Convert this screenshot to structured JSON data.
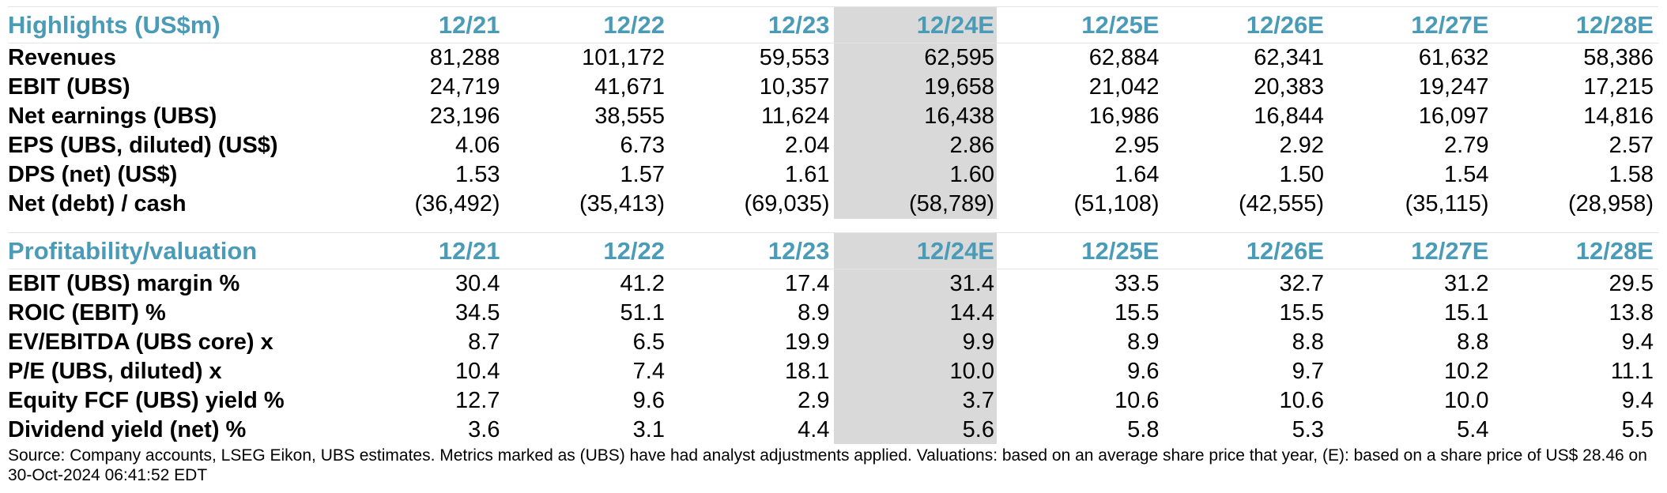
{
  "colors": {
    "header_text": "#4a9bb7",
    "shaded_column": "#d9d9d9",
    "body_text": "#000000"
  },
  "highlights": {
    "title": "Highlights (US$m)",
    "columns": [
      "12/21",
      "12/22",
      "12/23",
      "12/24E",
      "12/25E",
      "12/26E",
      "12/27E",
      "12/28E"
    ],
    "rows": [
      {
        "label": "Revenues",
        "values": [
          "81,288",
          "101,172",
          "59,553",
          "62,595",
          "62,884",
          "62,341",
          "61,632",
          "58,386"
        ]
      },
      {
        "label": "EBIT (UBS)",
        "values": [
          "24,719",
          "41,671",
          "10,357",
          "19,658",
          "21,042",
          "20,383",
          "19,247",
          "17,215"
        ]
      },
      {
        "label": "Net earnings (UBS)",
        "values": [
          "23,196",
          "38,555",
          "11,624",
          "16,438",
          "16,986",
          "16,844",
          "16,097",
          "14,816"
        ]
      },
      {
        "label": "EPS (UBS, diluted) (US$)",
        "values": [
          "4.06",
          "6.73",
          "2.04",
          "2.86",
          "2.95",
          "2.92",
          "2.79",
          "2.57"
        ]
      },
      {
        "label": "DPS (net) (US$)",
        "values": [
          "1.53",
          "1.57",
          "1.61",
          "1.60",
          "1.64",
          "1.50",
          "1.54",
          "1.58"
        ]
      },
      {
        "label": "Net (debt) / cash",
        "values": [
          "(36,492)",
          "(35,413)",
          "(69,035)",
          "(58,789)",
          "(51,108)",
          "(42,555)",
          "(35,115)",
          "(28,958)"
        ]
      }
    ]
  },
  "profitability": {
    "title": "Profitability/valuation",
    "columns": [
      "12/21",
      "12/22",
      "12/23",
      "12/24E",
      "12/25E",
      "12/26E",
      "12/27E",
      "12/28E"
    ],
    "rows": [
      {
        "label": "EBIT (UBS) margin %",
        "values": [
          "30.4",
          "41.2",
          "17.4",
          "31.4",
          "33.5",
          "32.7",
          "31.2",
          "29.5"
        ]
      },
      {
        "label": "ROIC (EBIT) %",
        "values": [
          "34.5",
          "51.1",
          "8.9",
          "14.4",
          "15.5",
          "15.5",
          "15.1",
          "13.8"
        ]
      },
      {
        "label": "EV/EBITDA (UBS core) x",
        "values": [
          "8.7",
          "6.5",
          "19.9",
          "9.9",
          "8.9",
          "8.8",
          "8.8",
          "9.4"
        ]
      },
      {
        "label": "P/E (UBS, diluted) x",
        "values": [
          "10.4",
          "7.4",
          "18.1",
          "10.0",
          "9.6",
          "9.7",
          "10.2",
          "11.1"
        ]
      },
      {
        "label": "Equity FCF (UBS) yield %",
        "values": [
          "12.7",
          "9.6",
          "2.9",
          "3.7",
          "10.6",
          "10.6",
          "10.0",
          "9.4"
        ]
      },
      {
        "label": "Dividend yield (net) %",
        "values": [
          "3.6",
          "3.1",
          "4.4",
          "5.6",
          "5.8",
          "5.3",
          "5.4",
          "5.5"
        ]
      }
    ]
  },
  "source_note": "Source: Company accounts, LSEG Eikon, UBS estimates. Metrics marked as (UBS) have had analyst adjustments applied. Valuations: based on an average share price that year, (E): based on a share price of US$ 28.46 on 30-Oct-2024 06:41:52 EDT"
}
